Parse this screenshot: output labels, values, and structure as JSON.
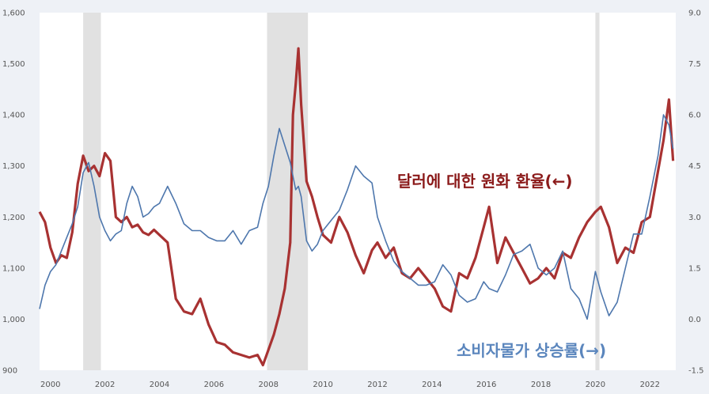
{
  "chart_data": {
    "type": "line",
    "x_range": [
      1999.6,
      2022.95
    ],
    "x_ticks": [
      "2000",
      "2002",
      "2004",
      "2006",
      "2008",
      "2010",
      "2012",
      "2014",
      "2016",
      "2018",
      "2020",
      "2022"
    ],
    "x_tick_values": [
      2000,
      2002,
      2004,
      2006,
      2008,
      2010,
      2012,
      2014,
      2016,
      2018,
      2020,
      2022
    ],
    "y_left": {
      "range": [
        900,
        1600
      ],
      "tick_values": [
        900,
        1000,
        1100,
        1200,
        1300,
        1400,
        1500,
        1600
      ],
      "tick_labels": [
        "900",
        "1,000",
        "1,100",
        "1,200",
        "1,300",
        "1,400",
        "1,500",
        "1,600"
      ]
    },
    "y_right": {
      "range": [
        -1.5,
        9.0
      ],
      "tick_values": [
        -1.5,
        0,
        1.5,
        3,
        4.5,
        6,
        7.5,
        9
      ],
      "tick_labels": [
        "-1.5",
        "0.0",
        "1.5",
        "3.0",
        "4.5",
        "6.0",
        "7.5",
        "9.0"
      ]
    },
    "recessions": [
      [
        2001.2,
        2001.85
      ],
      [
        2007.95,
        2009.45
      ],
      [
        2020.0,
        2020.15
      ]
    ],
    "colors": {
      "exchange": "#a83232",
      "cpi": "#4e77ad",
      "recession": "#e1e1e1",
      "background": "#eef1f6",
      "plot": "#ffffff"
    },
    "series": [
      {
        "name": "달러에 대한 원화 환율(←)",
        "axis": "left",
        "x": [
          1999.6,
          1999.8,
          2000.0,
          2000.2,
          2000.4,
          2000.6,
          2000.8,
          2001.0,
          2001.2,
          2001.4,
          2001.6,
          2001.8,
          2002.0,
          2002.2,
          2002.4,
          2002.6,
          2002.8,
          2003.0,
          2003.2,
          2003.4,
          2003.6,
          2003.8,
          2004.0,
          2004.3,
          2004.6,
          2004.9,
          2005.2,
          2005.5,
          2005.8,
          2006.1,
          2006.4,
          2006.7,
          2007.0,
          2007.3,
          2007.6,
          2007.8,
          2008.0,
          2008.2,
          2008.4,
          2008.6,
          2008.8,
          2008.9,
          2009.0,
          2009.1,
          2009.2,
          2009.4,
          2009.6,
          2009.8,
          2010.0,
          2010.3,
          2010.6,
          2010.9,
          2011.2,
          2011.5,
          2011.8,
          2012.0,
          2012.3,
          2012.6,
          2012.9,
          2013.2,
          2013.5,
          2013.8,
          2014.1,
          2014.4,
          2014.7,
          2015.0,
          2015.3,
          2015.6,
          2015.9,
          2016.1,
          2016.4,
          2016.7,
          2017.0,
          2017.3,
          2017.6,
          2017.9,
          2018.2,
          2018.5,
          2018.8,
          2019.1,
          2019.4,
          2019.7,
          2020.0,
          2020.2,
          2020.5,
          2020.8,
          2021.1,
          2021.4,
          2021.7,
          2022.0,
          2022.3,
          2022.5,
          2022.7,
          2022.85
        ],
        "values": [
          1210,
          1190,
          1140,
          1110,
          1125,
          1120,
          1170,
          1265,
          1320,
          1290,
          1300,
          1280,
          1325,
          1310,
          1200,
          1190,
          1200,
          1180,
          1185,
          1170,
          1165,
          1175,
          1165,
          1150,
          1040,
          1015,
          1010,
          1040,
          990,
          955,
          950,
          935,
          930,
          925,
          930,
          910,
          940,
          970,
          1010,
          1060,
          1150,
          1400,
          1460,
          1530,
          1420,
          1270,
          1240,
          1200,
          1165,
          1150,
          1200,
          1170,
          1125,
          1090,
          1135,
          1150,
          1120,
          1140,
          1090,
          1080,
          1100,
          1080,
          1060,
          1025,
          1015,
          1090,
          1080,
          1120,
          1180,
          1220,
          1110,
          1160,
          1130,
          1100,
          1070,
          1080,
          1100,
          1080,
          1130,
          1120,
          1160,
          1190,
          1210,
          1220,
          1180,
          1110,
          1140,
          1130,
          1190,
          1200,
          1290,
          1350,
          1430,
          1310
        ]
      },
      {
        "name": "소비자물가 상승률(→)",
        "axis": "right",
        "x": [
          1999.6,
          1999.8,
          2000.0,
          2000.2,
          2000.4,
          2000.6,
          2000.8,
          2001.0,
          2001.2,
          2001.4,
          2001.6,
          2001.8,
          2002.0,
          2002.2,
          2002.4,
          2002.6,
          2002.8,
          2003.0,
          2003.2,
          2003.4,
          2003.6,
          2003.8,
          2004.0,
          2004.3,
          2004.6,
          2004.9,
          2005.2,
          2005.5,
          2005.8,
          2006.1,
          2006.4,
          2006.7,
          2007.0,
          2007.3,
          2007.6,
          2007.8,
          2008.0,
          2008.2,
          2008.4,
          2008.6,
          2008.8,
          2008.9,
          2009.0,
          2009.1,
          2009.2,
          2009.4,
          2009.6,
          2009.8,
          2010.0,
          2010.3,
          2010.6,
          2010.9,
          2011.2,
          2011.5,
          2011.8,
          2012.0,
          2012.3,
          2012.6,
          2012.9,
          2013.2,
          2013.5,
          2013.8,
          2014.1,
          2014.4,
          2014.7,
          2015.0,
          2015.3,
          2015.6,
          2015.9,
          2016.1,
          2016.4,
          2016.7,
          2017.0,
          2017.3,
          2017.6,
          2017.9,
          2018.2,
          2018.5,
          2018.8,
          2019.1,
          2019.4,
          2019.7,
          2020.0,
          2020.2,
          2020.5,
          2020.8,
          2021.1,
          2021.4,
          2021.7,
          2022.0,
          2022.3,
          2022.5,
          2022.7,
          2022.85
        ],
        "values": [
          0.3,
          1.0,
          1.4,
          1.6,
          2.0,
          2.4,
          2.8,
          3.3,
          4.3,
          4.6,
          3.9,
          3.0,
          2.6,
          2.3,
          2.5,
          2.6,
          3.4,
          3.9,
          3.6,
          3.0,
          3.1,
          3.3,
          3.4,
          3.9,
          3.4,
          2.8,
          2.6,
          2.6,
          2.4,
          2.3,
          2.3,
          2.6,
          2.2,
          2.6,
          2.7,
          3.4,
          3.9,
          4.8,
          5.6,
          5.1,
          4.6,
          4.2,
          3.8,
          3.9,
          3.6,
          2.3,
          2.0,
          2.2,
          2.6,
          2.9,
          3.2,
          3.8,
          4.5,
          4.2,
          4.0,
          3.0,
          2.3,
          1.7,
          1.4,
          1.2,
          1.0,
          1.0,
          1.1,
          1.6,
          1.3,
          0.7,
          0.5,
          0.6,
          1.1,
          0.9,
          0.8,
          1.3,
          1.9,
          2.0,
          2.2,
          1.5,
          1.3,
          1.5,
          2.0,
          0.9,
          0.6,
          0.0,
          1.4,
          0.8,
          0.1,
          0.5,
          1.5,
          2.5,
          2.5,
          3.6,
          4.8,
          6.0,
          5.7,
          5.0
        ]
      }
    ],
    "annotations": [
      {
        "text": "달러에 대한 원화 환율(←)",
        "color": "#8b1a1a"
      },
      {
        "text": "소비자물가 상승률(→)",
        "color": "#5b86bd"
      }
    ]
  }
}
